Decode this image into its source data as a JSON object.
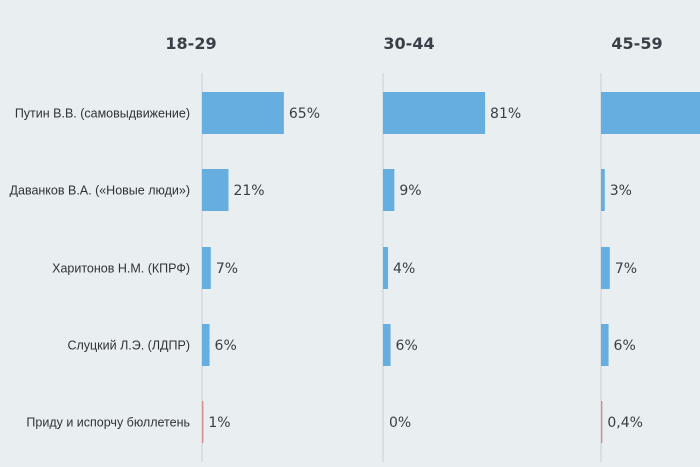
{
  "chart_data": {
    "type": "bar",
    "orientation": "horizontal",
    "categories": [
      "Путин В.В. (самовыдвижение)",
      "Даванков В.А. («Новые люди»)",
      "Харитонов Н.М. (КПРФ)",
      "Слуцкий Л.Э. (ЛДПР)",
      "Приду и испорчу бюллетень"
    ],
    "groups": [
      {
        "name": "18-29",
        "values": [
          65,
          21,
          7,
          6,
          1
        ],
        "labels": [
          "65%",
          "21%",
          "7%",
          "6%",
          "1%"
        ]
      },
      {
        "name": "30-44",
        "values": [
          81,
          9,
          4,
          6,
          0
        ],
        "labels": [
          "81%",
          "9%",
          "4%",
          "6%",
          "0%"
        ]
      },
      {
        "name": "45-59",
        "values": [
          null,
          3,
          7,
          6,
          0.4
        ],
        "labels": [
          "",
          "3%",
          "7%",
          "6%",
          "0,4%"
        ]
      }
    ],
    "colors": {
      "bar": "#66aee0",
      "spoil_bar": "#d98a8a",
      "axis": "#c9cfd4"
    },
    "title": "",
    "xlabel": "",
    "ylabel": ""
  }
}
